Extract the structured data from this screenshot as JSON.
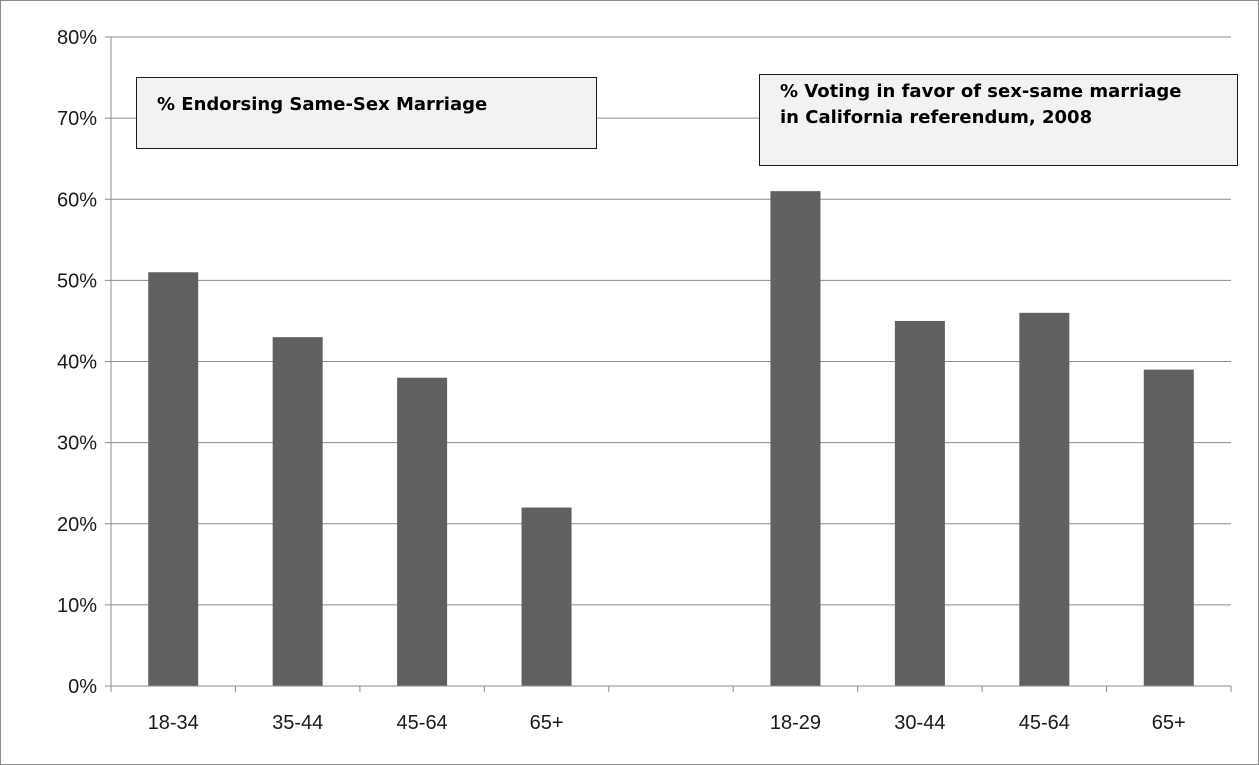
{
  "chart_data": {
    "type": "bar",
    "title": "",
    "xlabel": "",
    "ylabel": "",
    "ylim": [
      0,
      0.8
    ],
    "yticks": [
      "0%",
      "10%",
      "20%",
      "30%",
      "40%",
      "50%",
      "60%",
      "70%",
      "80%"
    ],
    "grid": true,
    "bar_color": "#606060",
    "categories": [
      "18-34",
      "35-44",
      "45-64",
      "65+",
      "",
      "18-29",
      "30-44",
      "45-64",
      "65+"
    ],
    "values": [
      0.51,
      0.43,
      0.38,
      0.22,
      null,
      0.61,
      0.45,
      0.46,
      0.39
    ],
    "annotations": [
      {
        "lines": [
          "% Endorsing Same-Sex Marriage"
        ]
      },
      {
        "lines": [
          "% Voting in favor of sex-same marriage",
          "in California referendum, 2008"
        ]
      }
    ]
  }
}
